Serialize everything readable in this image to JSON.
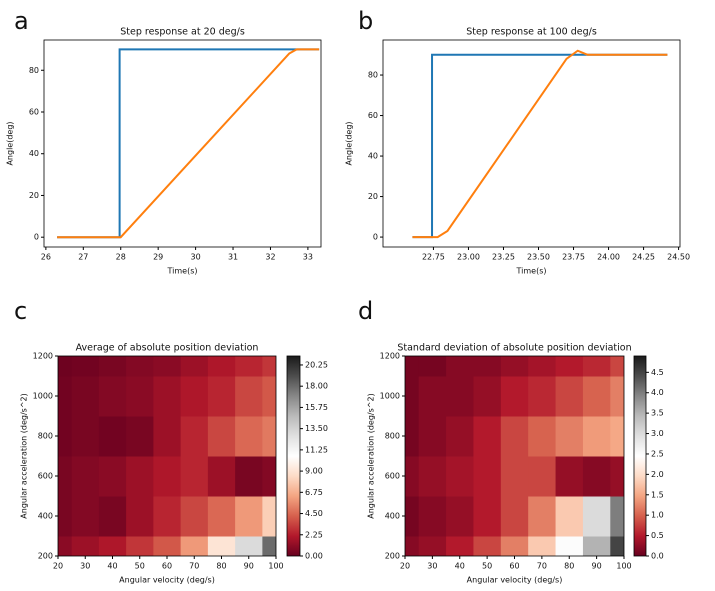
{
  "chart_data": [
    {
      "type": "line",
      "panel_label": "a",
      "title": "Step response at 20 deg/s",
      "x_label": "Time(s)",
      "y_label": "Angle(deg)",
      "xlim": [
        25.95,
        33.35
      ],
      "ylim": [
        -4.7,
        94.5
      ],
      "xticks": [
        26,
        27,
        28,
        29,
        30,
        31,
        32,
        33
      ],
      "yticks": [
        0,
        20,
        40,
        60,
        80
      ],
      "series": [
        {
          "color": "#1f77b4",
          "x": [
            26.3,
            27.97,
            27.97,
            33.3
          ],
          "values": [
            0,
            0,
            90,
            90
          ]
        },
        {
          "color": "#ff7f0e",
          "x": [
            26.3,
            28.0,
            32.5,
            32.7,
            33.3
          ],
          "values": [
            0,
            0,
            88,
            90,
            90
          ]
        }
      ]
    },
    {
      "type": "line",
      "panel_label": "b",
      "title": "Step response at 100 deg/s",
      "x_label": "Time(s)",
      "y_label": "Angle(deg)",
      "xlim": [
        22.39,
        24.51
      ],
      "ylim": [
        -4.9,
        97.3
      ],
      "xticks": [
        22.75,
        {
          "value": 23,
          "label": "23.00"
        },
        23.25,
        {
          "value": 23.5,
          "label": "23.50"
        },
        23.75,
        {
          "value": 24,
          "label": "24.00"
        },
        24.25,
        {
          "value": 24.5,
          "label": "24.50"
        }
      ],
      "yticks": [
        0,
        20,
        40,
        60,
        80
      ],
      "series": [
        {
          "color": "#1f77b4",
          "x": [
            22.6,
            22.74,
            22.74,
            24.42
          ],
          "values": [
            0,
            0,
            90,
            90
          ]
        },
        {
          "color": "#ff7f0e",
          "x": [
            22.6,
            22.78,
            22.85,
            23.7,
            23.78,
            23.85,
            24.42
          ],
          "values": [
            0,
            0,
            3,
            88,
            92,
            90,
            90
          ]
        }
      ]
    },
    {
      "type": "contour",
      "panel_label": "c",
      "title": "Average of absolute position deviation",
      "x_label": "Angular velocity (deg/s)",
      "y_label": "Angular acceleration (deg/s^2)",
      "xlim": [
        20,
        100
      ],
      "ylim": [
        200,
        1200
      ],
      "xticks": [
        20,
        30,
        40,
        50,
        60,
        70,
        80,
        90,
        100
      ],
      "yticks": [
        200,
        400,
        600,
        800,
        1000,
        1200
      ],
      "x": [
        20,
        30,
        40,
        50,
        60,
        70,
        80,
        90,
        100
      ],
      "y": [
        200,
        400,
        600,
        800,
        1000,
        1200
      ],
      "z": [
        [
          1,
          1.5,
          2,
          3,
          4,
          6,
          9,
          13,
          18
        ],
        [
          0.5,
          0.8,
          0.5,
          1.5,
          2.5,
          3.5,
          4.5,
          6,
          8
        ],
        [
          0.5,
          0.8,
          1,
          1.5,
          2,
          2.5,
          1.5,
          0.5,
          0.8
        ],
        [
          0.3,
          0.5,
          0.3,
          0.5,
          1.5,
          2.5,
          3.5,
          4.5,
          5
        ],
        [
          0.3,
          0.5,
          0.8,
          1,
          1.5,
          2,
          2.5,
          3.5,
          4
        ],
        [
          0.2,
          0.3,
          0.5,
          0.8,
          1,
          1.5,
          2,
          2.5,
          3
        ]
      ],
      "clim": [
        0,
        21.2
      ],
      "cticks": [
        {
          "value": 0,
          "label": "0.00"
        },
        2.25,
        {
          "value": 4.5,
          "label": "4.50"
        },
        6.75,
        {
          "value": 9,
          "label": "9.00"
        },
        11.25,
        {
          "value": 13.5,
          "label": "13.50"
        },
        15.75,
        {
          "value": 18,
          "label": "18.00"
        },
        20.25
      ]
    },
    {
      "type": "contour",
      "panel_label": "d",
      "title": "Standard deviation of absolute position deviation",
      "x_label": "Angular velocity (deg/s)",
      "y_label": "Angular acceleration (deg/s^2)",
      "xlim": [
        20,
        100
      ],
      "ylim": [
        200,
        1200
      ],
      "xticks": [
        20,
        30,
        40,
        50,
        60,
        70,
        80,
        90,
        100
      ],
      "yticks": [
        200,
        400,
        600,
        800,
        1000,
        1200
      ],
      "x": [
        20,
        30,
        40,
        50,
        60,
        70,
        80,
        90,
        100
      ],
      "y": [
        200,
        400,
        600,
        800,
        1000,
        1200
      ],
      "z": [
        [
          0.2,
          0.3,
          0.5,
          0.8,
          1.2,
          1.8,
          2.5,
          3.5,
          4.5
        ],
        [
          0.1,
          0.2,
          0.3,
          0.5,
          0.8,
          1.2,
          1.8,
          3,
          4
        ],
        [
          0.2,
          0.3,
          0.4,
          0.5,
          0.8,
          0.8,
          0.3,
          0.2,
          0.3
        ],
        [
          0.1,
          0.2,
          0.3,
          0.5,
          0.8,
          1,
          1.2,
          1.4,
          1.5
        ],
        [
          0.1,
          0.2,
          0.2,
          0.3,
          0.5,
          0.6,
          0.8,
          1,
          1.2
        ],
        [
          0.1,
          0.1,
          0.2,
          0.2,
          0.3,
          0.4,
          0.5,
          0.6,
          0.8
        ]
      ],
      "clim": [
        0,
        4.9
      ],
      "cticks": [
        {
          "value": 0,
          "label": "0.0"
        },
        0.5,
        {
          "value": 1,
          "label": "1.0"
        },
        1.5,
        {
          "value": 2,
          "label": "2.0"
        },
        2.5,
        {
          "value": 3,
          "label": "3.0"
        },
        3.5,
        {
          "value": 4,
          "label": "4.0"
        },
        4.5
      ]
    }
  ]
}
